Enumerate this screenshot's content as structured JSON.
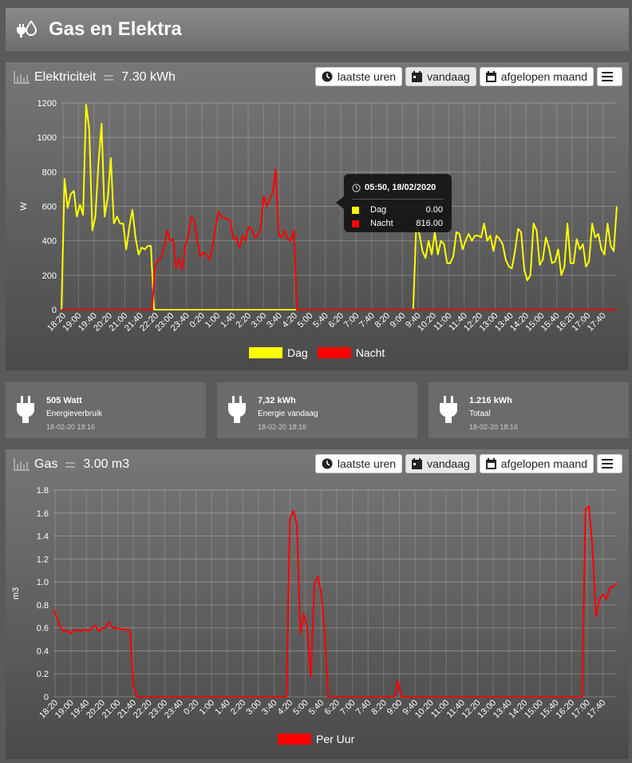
{
  "header": {
    "title": "Gas en Elektra",
    "icon": "plug-drop-icon"
  },
  "toolbar": {
    "hours": "laatste uren",
    "today": "vandaag",
    "month": "afgelopen maand"
  },
  "electricity": {
    "title": "Elektriciteit",
    "total": "7.30 kWh",
    "tooltip": {
      "time": "05:50, 18/02/2020",
      "rows": [
        {
          "name": "Dag",
          "value": "0.00",
          "color": "#ffff00"
        },
        {
          "name": "Nacht",
          "value": "816.00",
          "color": "#ff0000"
        }
      ]
    }
  },
  "tiles": [
    {
      "value": "505 Watt",
      "label": "Energieverbruik",
      "time": "18-02-20 18:16"
    },
    {
      "value": "7,32 kWh",
      "label": "Energie vandaag",
      "time": "18-02-20 18:16"
    },
    {
      "value": "1.216 kWh",
      "label": "Totaal",
      "time": "18-02-20 18:16"
    }
  ],
  "gas": {
    "title": "Gas",
    "total": "3.00 m3"
  },
  "chart_data": [
    {
      "type": "line",
      "ylabel": "W",
      "ylim": [
        0,
        1200
      ],
      "yticks": [
        0,
        200,
        400,
        600,
        800,
        1000,
        1200
      ],
      "xtick_labels": [
        "18:20",
        "19:00",
        "19:40",
        "20:20",
        "21:00",
        "21:40",
        "22:20",
        "23:00",
        "23:40",
        "0:20",
        "1:00",
        "1:40",
        "2:20",
        "3:00",
        "3:40",
        "4:20",
        "5:00",
        "5:40",
        "6:20",
        "7:00",
        "7:40",
        "8:20",
        "9:00",
        "9:40",
        "10:20",
        "11:00",
        "11:40",
        "12:20",
        "13:00",
        "13:40",
        "14:20",
        "15:00",
        "15:40",
        "16:20",
        "17:00",
        "17:40"
      ],
      "grid": true,
      "legend": "bottom",
      "series": [
        {
          "name": "Dag",
          "color": "#ffff00",
          "values": [
            0,
            760,
            590,
            670,
            690,
            540,
            610,
            550,
            1190,
            1050,
            460,
            540,
            850,
            1080,
            540,
            650,
            880,
            500,
            540,
            500,
            500,
            350,
            480,
            580,
            420,
            320,
            360,
            350,
            370,
            370,
            0,
            0,
            0,
            0,
            0,
            0,
            0,
            0,
            0,
            0,
            0,
            0,
            0,
            0,
            0,
            0,
            0,
            0,
            0,
            0,
            0,
            0,
            0,
            0,
            0,
            0,
            0,
            0,
            0,
            0,
            0,
            0,
            0,
            0,
            0,
            0,
            0,
            0,
            0,
            0,
            0,
            0,
            0,
            0,
            0,
            0,
            0,
            0,
            0,
            0,
            0,
            0,
            0,
            0,
            0,
            0,
            0,
            0,
            0,
            0,
            0,
            0,
            0,
            0,
            0,
            0,
            0,
            0,
            0,
            0,
            0,
            0,
            0,
            0,
            0,
            0,
            0,
            0,
            0,
            0,
            0,
            0,
            0,
            0,
            0,
            500,
            440,
            340,
            300,
            400,
            320,
            450,
            320,
            400,
            380,
            270,
            270,
            310,
            450,
            440,
            350,
            400,
            440,
            400,
            430,
            430,
            420,
            500,
            400,
            430,
            340,
            430,
            410,
            380,
            290,
            250,
            240,
            340,
            470,
            450,
            230,
            170,
            200,
            500,
            460,
            260,
            290,
            420,
            360,
            270,
            280,
            350,
            200,
            250,
            500,
            270,
            270,
            410,
            350,
            380,
            250,
            280,
            500,
            420,
            440,
            350,
            320,
            500,
            370,
            340,
            600
          ]
        },
        {
          "name": "Nacht",
          "color": "#ff0000",
          "values": [
            0,
            0,
            0,
            0,
            0,
            0,
            0,
            0,
            0,
            0,
            0,
            0,
            0,
            0,
            0,
            0,
            0,
            0,
            0,
            0,
            0,
            0,
            0,
            0,
            0,
            0,
            0,
            0,
            0,
            0,
            0,
            250,
            290,
            300,
            360,
            460,
            400,
            410,
            240,
            300,
            230,
            370,
            430,
            540,
            520,
            400,
            310,
            330,
            320,
            290,
            350,
            470,
            570,
            540,
            530,
            530,
            510,
            410,
            420,
            360,
            430,
            400,
            480,
            470,
            420,
            430,
            470,
            660,
            600,
            640,
            680,
            816,
            430,
            420,
            460,
            410,
            400,
            460,
            0,
            0,
            0,
            0,
            0,
            0,
            0,
            0,
            0,
            0,
            0,
            0,
            0,
            0,
            0,
            0,
            0,
            0,
            0,
            0,
            0,
            0,
            0,
            0,
            0,
            0,
            0,
            0,
            0,
            0,
            0,
            0,
            0,
            0,
            0,
            0,
            0,
            0,
            0,
            0,
            0,
            0,
            0,
            0,
            0,
            0,
            0,
            0,
            0,
            0,
            0,
            0,
            0,
            0,
            0,
            0,
            0,
            0,
            0,
            0,
            0,
            0,
            0,
            0,
            0,
            0,
            0,
            0,
            0,
            0,
            0,
            0,
            0,
            0,
            0,
            0,
            0,
            0,
            0,
            0,
            0,
            0,
            0,
            0,
            0,
            0,
            0,
            0,
            0,
            0,
            0,
            0,
            0,
            0,
            0,
            0,
            0,
            0,
            0,
            0,
            0,
            0,
            0,
            0,
            0,
            0,
            0
          ]
        }
      ]
    },
    {
      "type": "line",
      "ylabel": "m3",
      "ylim": [
        0,
        1.8
      ],
      "yticks": [
        0,
        0.2,
        0.4,
        0.6,
        0.8,
        1.0,
        1.2,
        1.4,
        1.6,
        1.8
      ],
      "xtick_labels": [
        "18:20",
        "19:00",
        "19:40",
        "20:20",
        "21:00",
        "21:40",
        "22:20",
        "23:00",
        "23:40",
        "0:20",
        "1:00",
        "1:40",
        "2:20",
        "3:00",
        "3:40",
        "4:20",
        "5:00",
        "5:40",
        "6:20",
        "7:00",
        "7:40",
        "8:20",
        "9:00",
        "9:40",
        "10:20",
        "11:00",
        "11:40",
        "12:20",
        "13:00",
        "13:40",
        "14:20",
        "15:00",
        "15:40",
        "16:20",
        "17:00",
        "17:40"
      ],
      "grid": true,
      "legend": "bottom",
      "series": [
        {
          "name": "Per Uur",
          "color": "#ff0000",
          "values": [
            0.76,
            0.69,
            0.6,
            0.57,
            0.58,
            0.55,
            0.58,
            0.58,
            0.57,
            0.59,
            0.57,
            0.6,
            0.62,
            0.57,
            0.6,
            0.6,
            0.65,
            0.6,
            0.6,
            0.59,
            0.59,
            0.58,
            0.58,
            0.1,
            0,
            0,
            0,
            0,
            0,
            0,
            0,
            0,
            0,
            0,
            0,
            0,
            0,
            0,
            0,
            0,
            0,
            0,
            0,
            0,
            0,
            0,
            0,
            0,
            0,
            0,
            0,
            0,
            0,
            0,
            0,
            0,
            0,
            0,
            0,
            0,
            0,
            0,
            0,
            0,
            0,
            0,
            0,
            0,
            1.55,
            1.62,
            1.5,
            0.55,
            0.72,
            0.6,
            0.17,
            0.98,
            1.05,
            0.9,
            0.55,
            0,
            0,
            0,
            0,
            0,
            0,
            0,
            0,
            0,
            0,
            0,
            0,
            0,
            0,
            0,
            0,
            0,
            0,
            0,
            0,
            0.14,
            0,
            0,
            0,
            0,
            0,
            0,
            0,
            0,
            0,
            0,
            0,
            0,
            0,
            0,
            0,
            0,
            0,
            0,
            0,
            0,
            0,
            0,
            0,
            0,
            0,
            0,
            0,
            0,
            0,
            0,
            0,
            0,
            0,
            0,
            0,
            0,
            0,
            0,
            0,
            0,
            0,
            0,
            0,
            0,
            0,
            0,
            0,
            0,
            0,
            0,
            0,
            0,
            0,
            1.63,
            1.66,
            1.3,
            0.7,
            0.85,
            0.89,
            0.85,
            0.95,
            0.96,
            0.99
          ]
        }
      ]
    }
  ]
}
